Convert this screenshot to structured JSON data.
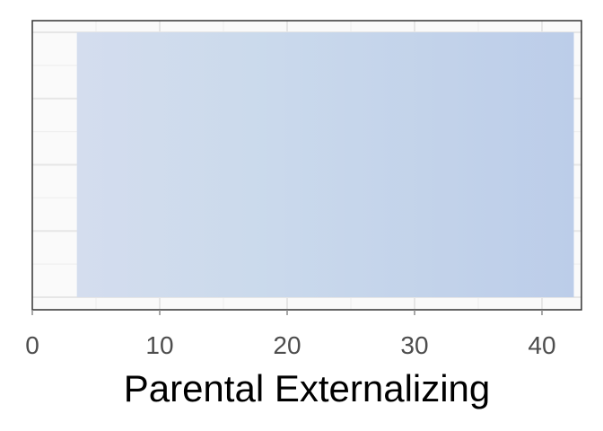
{
  "chart_data": {
    "type": "bar",
    "orientation": "horizontal",
    "title": "",
    "xlabel": "Parental Externalizing",
    "ylabel": "",
    "xlim": [
      0,
      43
    ],
    "x_ticks": [
      0,
      10,
      20,
      30,
      40
    ],
    "x_tick_labels": [
      "0",
      "10",
      "20",
      "30",
      "40"
    ],
    "bar": {
      "start": 3.5,
      "end": 42.5
    },
    "grid": true,
    "legend": "none",
    "colors": {
      "panel_background": "#fafafa",
      "grid_major": "#e6e6e6",
      "grid_minor": "#f0f0f0",
      "bar_start": "#d4ddee",
      "bar_mid": "#cbdaec",
      "bar_end": "#bccde9",
      "border": "#333333",
      "tick": "#8a8a8a"
    }
  }
}
